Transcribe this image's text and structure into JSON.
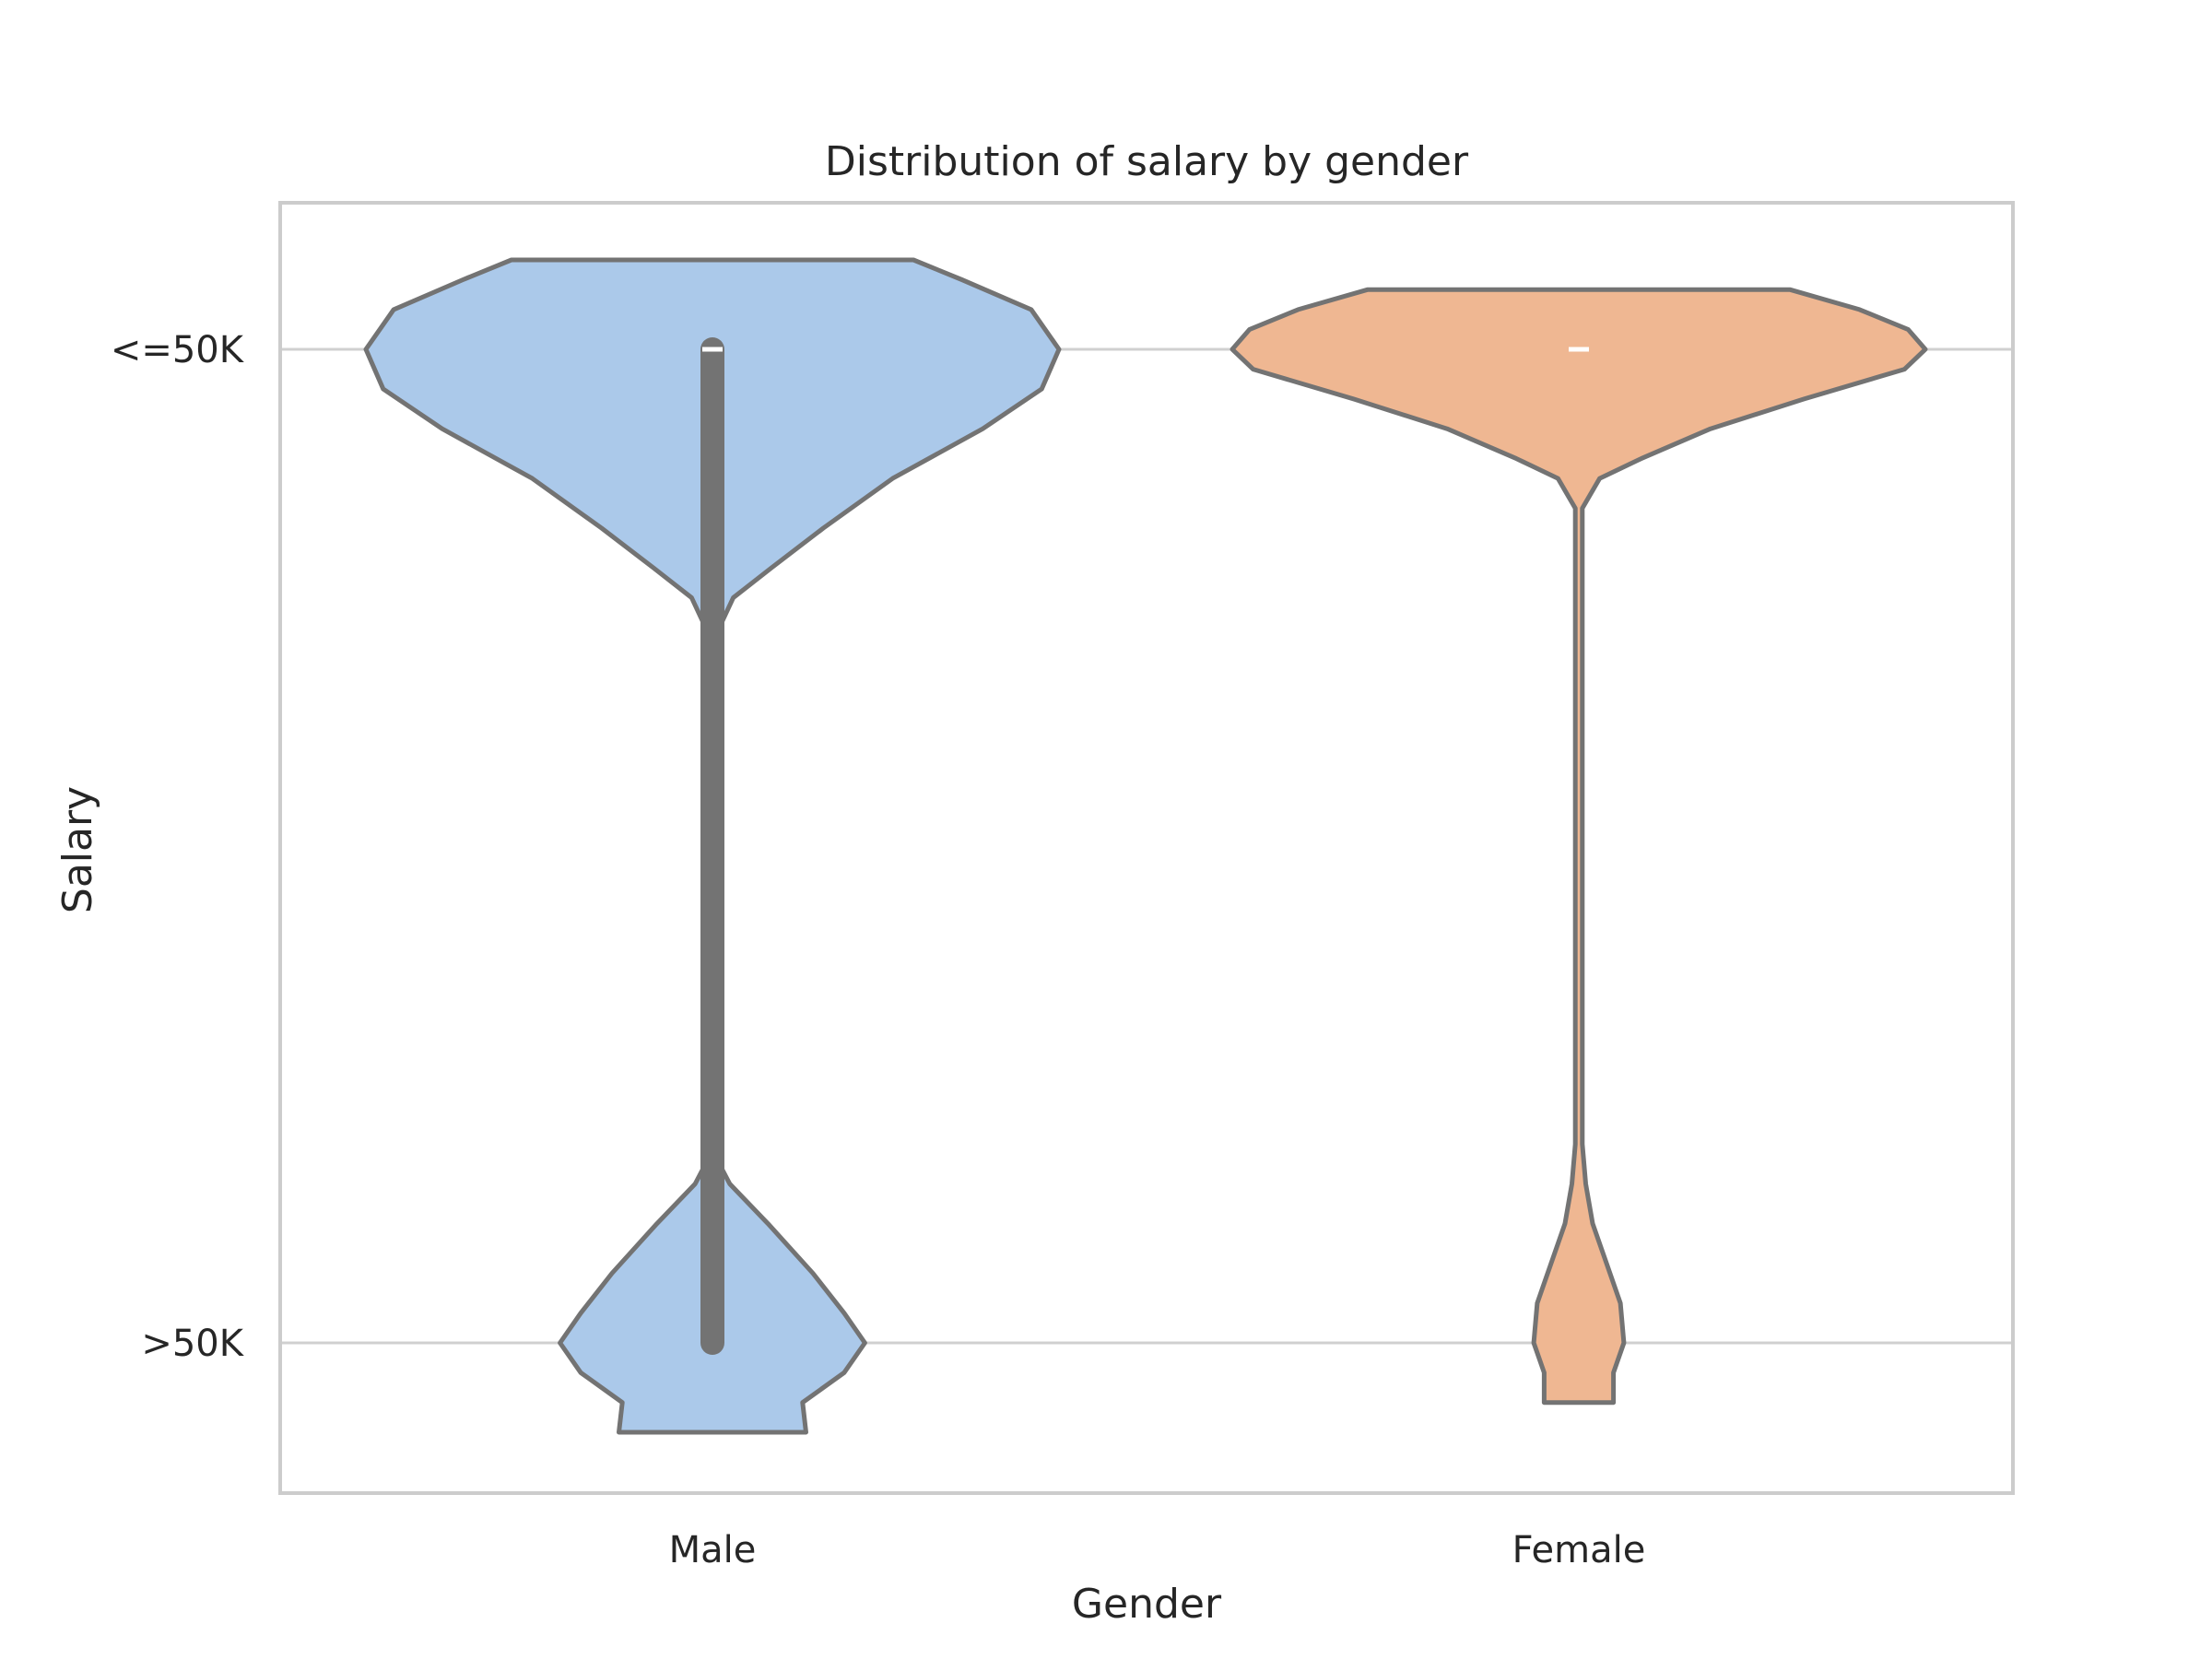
{
  "chart_data": {
    "type": "violin",
    "title": "Distribution of salary by gender",
    "xlabel": "Gender",
    "ylabel": "Salary",
    "categories": [
      "Male",
      "Female"
    ],
    "y_ticks": [
      "<=50K",
      ">50K"
    ],
    "y_tick_values": [
      0,
      1
    ],
    "ylim": [
      -0.18,
      1.15
    ],
    "grid": "horizontal",
    "legend": "none",
    "colors": {
      "Male": "#abc9ea",
      "Female": "#efb792",
      "outline": "#737373",
      "box": "#737373",
      "median": "#ffffff",
      "grid": "#d0d0d0",
      "frame": "#cccccc"
    },
    "series": [
      {
        "category": "Male",
        "proportion_gt50k": 0.31,
        "median": 0,
        "iqr": [
          0,
          1
        ],
        "whiskers": [
          0,
          1
        ],
        "violin_range": [
          -0.09,
          1.09
        ],
        "density": [
          [
            -0.09,
            0.58
          ],
          [
            -0.07,
            0.72
          ],
          [
            -0.04,
            0.92
          ],
          [
            0.0,
            1.0
          ],
          [
            0.04,
            0.95
          ],
          [
            0.08,
            0.78
          ],
          [
            0.13,
            0.52
          ],
          [
            0.18,
            0.32
          ],
          [
            0.22,
            0.17
          ],
          [
            0.25,
            0.06
          ],
          [
            0.28,
            0.02
          ],
          [
            0.3,
            0.02
          ],
          [
            0.5,
            0.02
          ],
          [
            0.7,
            0.02
          ],
          [
            0.82,
            0.02
          ],
          [
            0.84,
            0.05
          ],
          [
            0.88,
            0.16
          ],
          [
            0.93,
            0.29
          ],
          [
            0.97,
            0.38
          ],
          [
            1.0,
            0.44
          ],
          [
            1.03,
            0.38
          ],
          [
            1.06,
            0.26
          ],
          [
            1.09,
            0.27
          ]
        ]
      },
      {
        "category": "Female",
        "proportion_gt50k": 0.11,
        "median": 0,
        "iqr": [
          0,
          0
        ],
        "whiskers": [
          0,
          0
        ],
        "violin_range": [
          -0.06,
          1.06
        ],
        "density": [
          [
            -0.06,
            0.61
          ],
          [
            -0.04,
            0.81
          ],
          [
            -0.02,
            0.95
          ],
          [
            0.0,
            1.0
          ],
          [
            0.02,
            0.94
          ],
          [
            0.05,
            0.65
          ],
          [
            0.08,
            0.38
          ],
          [
            0.11,
            0.18
          ],
          [
            0.13,
            0.06
          ],
          [
            0.16,
            0.01
          ],
          [
            0.2,
            0.01
          ],
          [
            0.5,
            0.01
          ],
          [
            0.8,
            0.01
          ],
          [
            0.84,
            0.02
          ],
          [
            0.88,
            0.04
          ],
          [
            0.92,
            0.08
          ],
          [
            0.96,
            0.12
          ],
          [
            1.0,
            0.13
          ],
          [
            1.03,
            0.1
          ],
          [
            1.06,
            0.1
          ]
        ]
      }
    ]
  }
}
